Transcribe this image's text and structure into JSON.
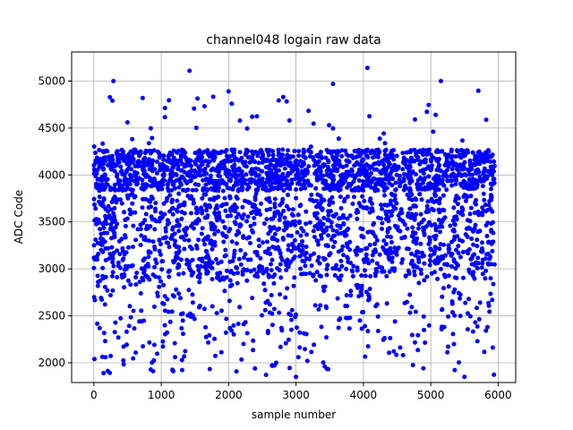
{
  "chart_data": {
    "type": "scatter",
    "title": "channel048 logain raw data",
    "xlabel": "sample number",
    "ylabel": "ADC Code",
    "xlim": [
      -330,
      6260
    ],
    "ylim": [
      1790,
      5310
    ],
    "xticks": [
      0,
      1000,
      2000,
      3000,
      4000,
      5000,
      6000
    ],
    "yticks": [
      2000,
      2500,
      3000,
      3500,
      4000,
      4500,
      5000
    ],
    "grid": true,
    "legend": "none",
    "marker_color": "#0000ff",
    "series": [
      {
        "name": "",
        "color": "#0000ff",
        "n_samples": 6000,
        "x_range": [
          0,
          5950
        ],
        "y_range": [
          1850,
          5140
        ],
        "dense_band": [
          3800,
          4300
        ],
        "notable_points": [
          {
            "x": 290,
            "y": 5000
          },
          {
            "x": 1420,
            "y": 5110
          },
          {
            "x": 3550,
            "y": 4970
          },
          {
            "x": 4060,
            "y": 5140
          },
          {
            "x": 5150,
            "y": 5000
          },
          {
            "x": 3000,
            "y": 1850
          },
          {
            "x": 5500,
            "y": 1850
          }
        ]
      }
    ]
  }
}
